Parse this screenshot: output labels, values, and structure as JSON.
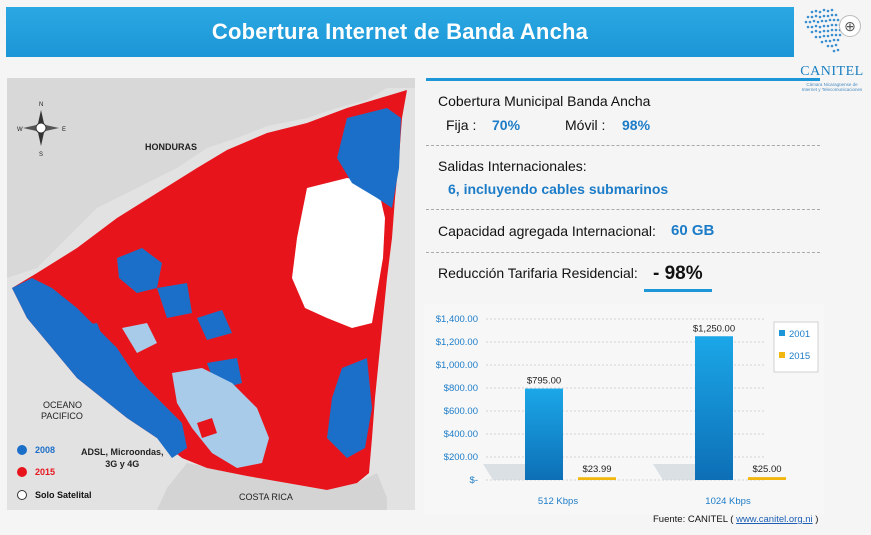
{
  "header": {
    "title": "Cobertura Internet de Banda Ancha"
  },
  "logo": {
    "brand": "CANITEL",
    "tagline": "Cámara Nicaragüense de Internet y Telecomunicaciones"
  },
  "map": {
    "labels": {
      "honduras": "HONDURAS",
      "oceano": "OCEANO",
      "pacifico": "PACIFICO",
      "costa_rica": "COSTA RICA",
      "compass": [
        "N",
        "S",
        "E",
        "W"
      ]
    },
    "legend": [
      {
        "label": "2008",
        "color": "#1c6fc9"
      },
      {
        "label": "2015",
        "color": "#e8141c"
      },
      {
        "label": "Solo Satelital",
        "color": "#ffffff"
      }
    ],
    "tech_note": [
      "ADSL, Microondas,",
      "3G y 4G"
    ]
  },
  "info": {
    "cobertura_title": "Cobertura Municipal Banda Ancha",
    "fija_label": "Fija",
    "fija_value": "70%",
    "movil_label": "Móvil",
    "movil_value": "98%",
    "salidas_title": "Salidas Internacionales:",
    "salidas_value": "6, incluyendo cables submarinos",
    "capacidad_title": "Capacidad agregada Internacional:",
    "capacidad_value": "60 GB",
    "reduccion_title": "Reducción Tarifaria Residencial:",
    "reduccion_value": "- 98%"
  },
  "chart_data": {
    "type": "bar",
    "categories": [
      "512 Kbps",
      "1024 Kbps"
    ],
    "series": [
      {
        "name": "2001",
        "values": [
          795.0,
          1250.0
        ],
        "color": "#1c96d6"
      },
      {
        "name": "2015",
        "values": [
          23.99,
          25.0
        ],
        "color": "#f2b70f"
      }
    ],
    "data_labels": [
      [
        "$795.00",
        "$1,250.00"
      ],
      [
        "$23.99",
        "$25.00"
      ]
    ],
    "ylim": [
      0,
      1400
    ],
    "yticks": [
      "$-",
      "$200.00",
      "$400.00",
      "$600.00",
      "$800.00",
      "$1,000.00",
      "$1,200.00",
      "$1,400.00"
    ],
    "ytick_values": [
      0,
      200,
      400,
      600,
      800,
      1000,
      1200,
      1400
    ],
    "grid": true,
    "legend_position": "right"
  },
  "footer": {
    "source_prefix": "Fuente: CANITEL (",
    "source_link": "www.canitel.org.ni",
    "source_suffix": ")"
  }
}
